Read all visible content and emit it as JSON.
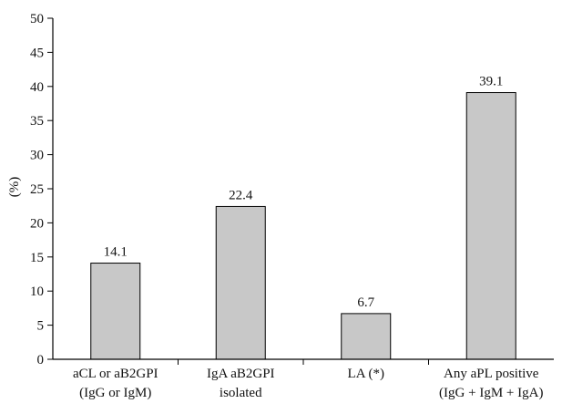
{
  "chart_data": {
    "type": "bar",
    "ylabel": "(%)",
    "xlabel": "",
    "ylim": [
      0,
      50
    ],
    "yticks": [
      "0",
      "5",
      "10",
      "15",
      "20",
      "25",
      "30",
      "35",
      "40",
      "45",
      "50"
    ],
    "categories": [
      [
        "aCL or aB2GPI",
        "(IgG or IgM)"
      ],
      [
        "IgA aB2GPI",
        "isolated"
      ],
      [
        "LA (*)"
      ],
      [
        "Any aPL positive",
        "(IgG + IgM + IgA)"
      ]
    ],
    "values": [
      14.1,
      22.4,
      6.7,
      39.1
    ],
    "data_labels": [
      "14.1",
      "22.4",
      "6.7",
      "39.1"
    ],
    "bar_color": "#c8c8c8"
  }
}
